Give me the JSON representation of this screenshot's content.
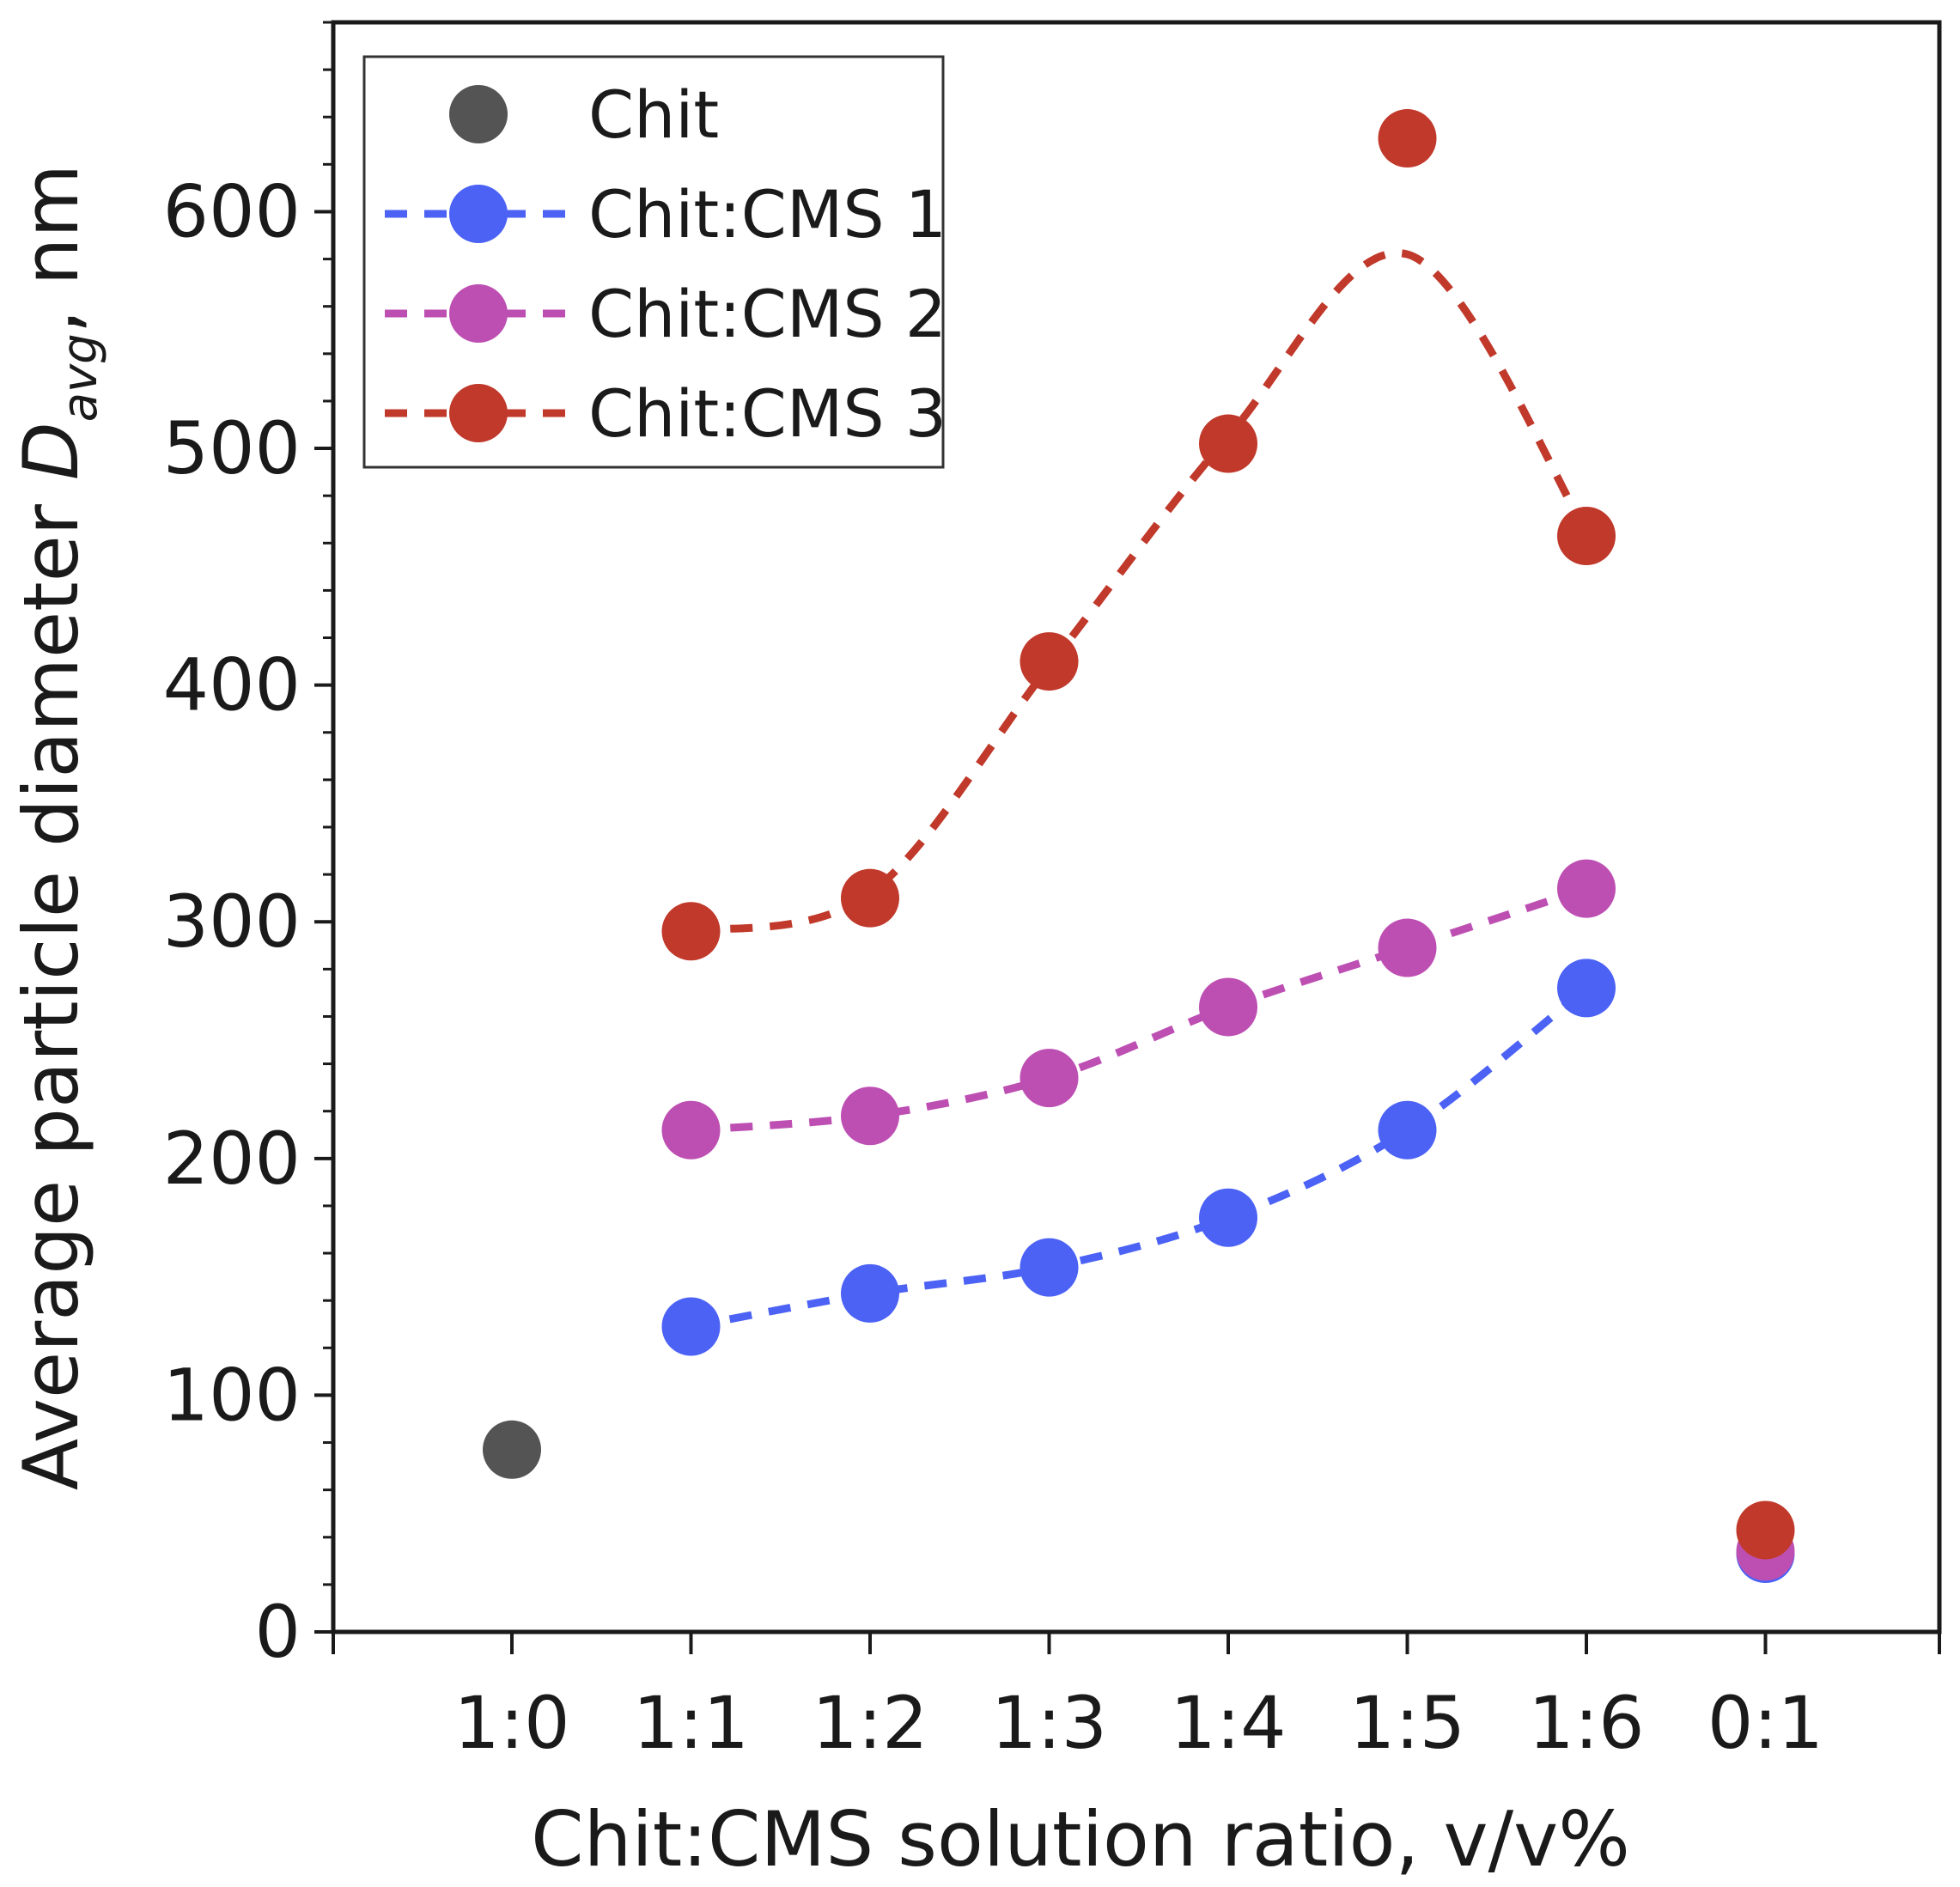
{
  "chart_data": {
    "type": "scatter",
    "title": "",
    "xlabel": "Chit:CMS solution ratio, v/v%",
    "ylabel": {
      "prefix": "Average particle diameter ",
      "symbol": "D",
      "subscript": "avg",
      "suffix": ", nm"
    },
    "categories": [
      "1:0",
      "1:1",
      "1:2",
      "1:3",
      "1:4",
      "1:5",
      "1:6",
      "0:1"
    ],
    "ylim": [
      0,
      680
    ],
    "yticks": [
      0,
      100,
      200,
      300,
      400,
      500,
      600
    ],
    "legend_position": "top-left",
    "series": [
      {
        "name": "Chit",
        "color": "#545454",
        "line": false,
        "points": [
          {
            "x": "1:0",
            "y": 77
          }
        ]
      },
      {
        "name": "Chit:CMS 1",
        "color": "#4b62f5",
        "line": true,
        "points": [
          {
            "x": "1:1",
            "y": 129
          },
          {
            "x": "1:2",
            "y": 143
          },
          {
            "x": "1:3",
            "y": 154
          },
          {
            "x": "1:4",
            "y": 175
          },
          {
            "x": "1:5",
            "y": 212
          },
          {
            "x": "1:6",
            "y": 272
          },
          {
            "x": "0:1",
            "y": 33
          }
        ],
        "line_points": [
          {
            "x": "1:1",
            "y": 129
          },
          {
            "x": "1:2",
            "y": 143
          },
          {
            "x": "1:3",
            "y": 154
          },
          {
            "x": "1:4",
            "y": 175
          },
          {
            "x": "1:5",
            "y": 212
          },
          {
            "x": "1:6",
            "y": 272
          }
        ]
      },
      {
        "name": "Chit:CMS 2",
        "color": "#bd4fb3",
        "line": true,
        "points": [
          {
            "x": "1:1",
            "y": 212
          },
          {
            "x": "1:2",
            "y": 218
          },
          {
            "x": "1:3",
            "y": 234
          },
          {
            "x": "1:4",
            "y": 264
          },
          {
            "x": "1:5",
            "y": 289
          },
          {
            "x": "1:6",
            "y": 314
          },
          {
            "x": "0:1",
            "y": 34
          }
        ],
        "line_points": [
          {
            "x": "1:1",
            "y": 212
          },
          {
            "x": "1:2",
            "y": 218
          },
          {
            "x": "1:3",
            "y": 234
          },
          {
            "x": "1:4",
            "y": 264
          },
          {
            "x": "1:5",
            "y": 289
          },
          {
            "x": "1:6",
            "y": 314
          }
        ]
      },
      {
        "name": "Chit:CMS 3",
        "color": "#c0392b",
        "line": true,
        "points": [
          {
            "x": "1:1",
            "y": 296
          },
          {
            "x": "1:2",
            "y": 310
          },
          {
            "x": "1:3",
            "y": 410
          },
          {
            "x": "1:4",
            "y": 502
          },
          {
            "x": "1:5",
            "y": 631
          },
          {
            "x": "1:6",
            "y": 463
          },
          {
            "x": "0:1",
            "y": 43
          }
        ],
        "line_points": [
          {
            "x": "1:1",
            "y": 296
          },
          {
            "x": "1:2",
            "y": 312
          },
          {
            "x": "1:3",
            "y": 408
          },
          {
            "x": "1:4",
            "y": 505
          },
          {
            "x": "1:5",
            "y": 582
          },
          {
            "x": "1:6",
            "y": 465
          }
        ]
      }
    ]
  }
}
